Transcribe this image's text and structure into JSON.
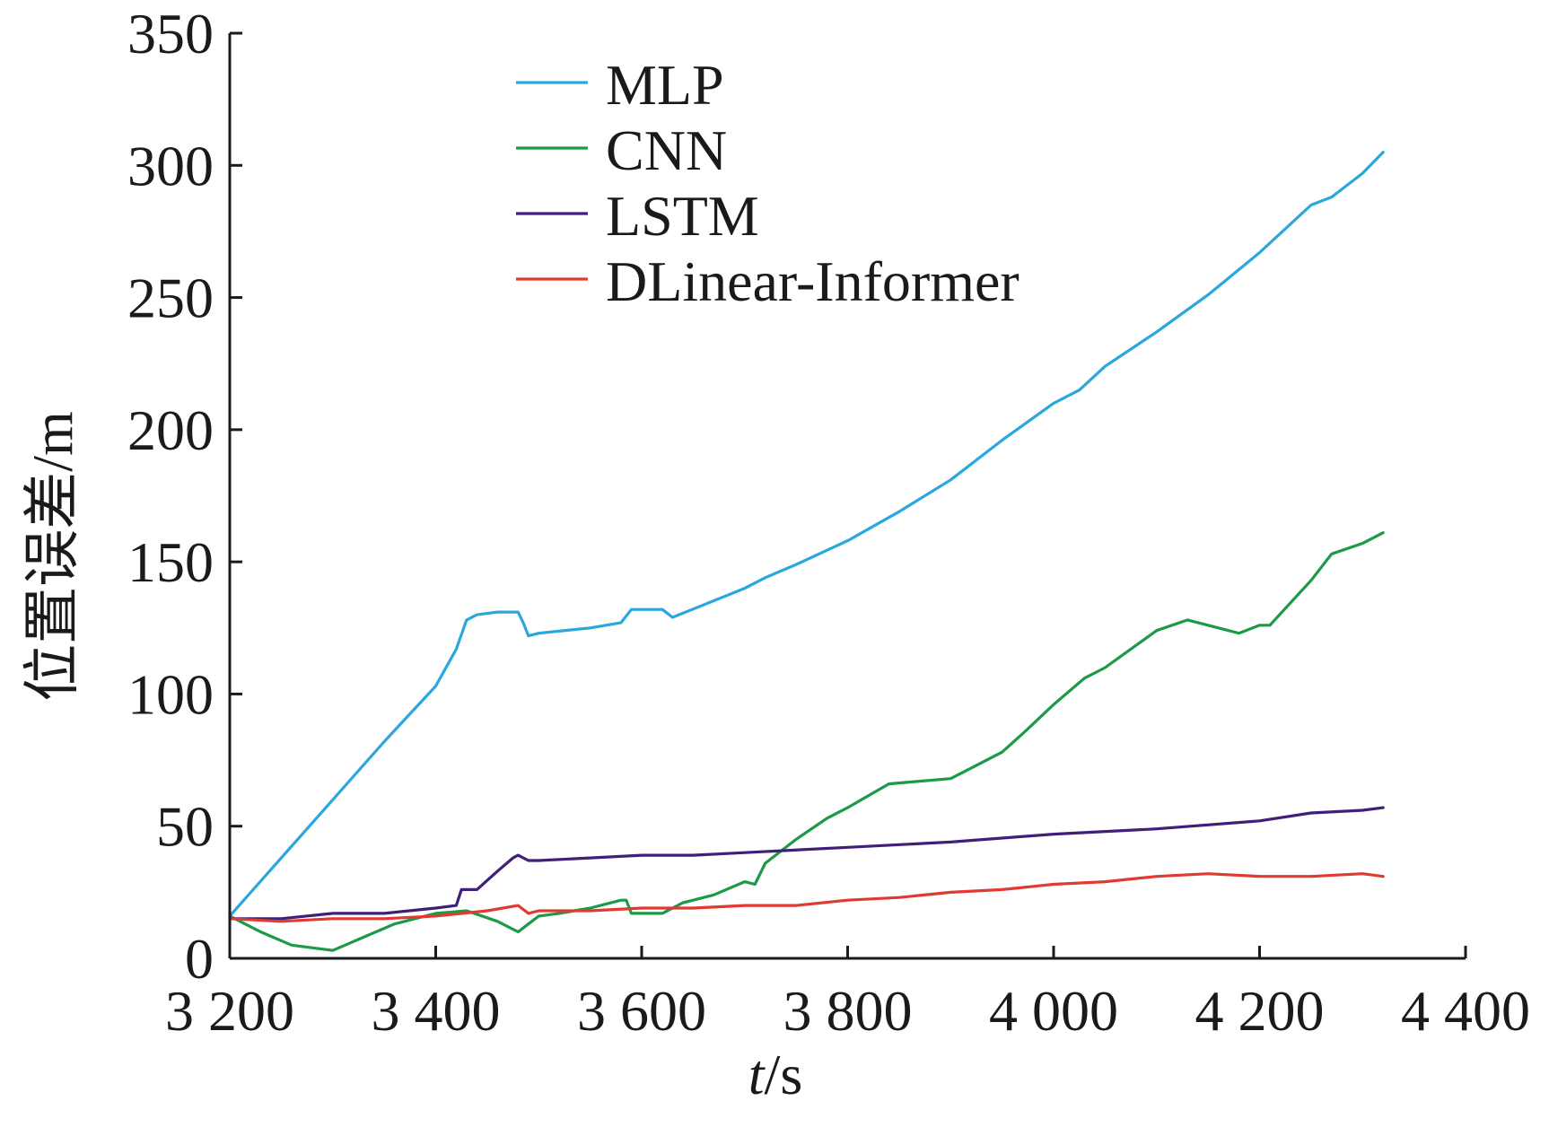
{
  "chart_data": {
    "type": "line",
    "xlabel_italic": "t",
    "xlabel_unit": "/s",
    "ylabel": "位置误差/m",
    "xlim": [
      3200,
      4400
    ],
    "ylim": [
      0,
      350
    ],
    "xticks": [
      3200,
      3400,
      3600,
      3800,
      4000,
      4200,
      4400
    ],
    "xtick_labels": [
      "3 200",
      "3 400",
      "3 600",
      "3 800",
      "4 000",
      "4 200",
      "4 400"
    ],
    "yticks": [
      0,
      50,
      100,
      150,
      200,
      250,
      300,
      350
    ],
    "ytick_labels": [
      "0",
      "50",
      "100",
      "150",
      "200",
      "250",
      "300",
      "350"
    ],
    "grid": false,
    "legend_position": "top-center",
    "series": [
      {
        "name": "MLP",
        "color": "#2aa7dc",
        "x": [
          3200,
          3250,
          3300,
          3350,
          3400,
          3420,
          3430,
          3440,
          3460,
          3480,
          3485,
          3490,
          3500,
          3550,
          3580,
          3590,
          3620,
          3630,
          3700,
          3720,
          3750,
          3800,
          3850,
          3900,
          3950,
          4000,
          4025,
          4050,
          4100,
          4150,
          4200,
          4250,
          4270,
          4300,
          4320
        ],
        "y": [
          16,
          38,
          60,
          82,
          103,
          117,
          128,
          130,
          131,
          131,
          127,
          122,
          123,
          125,
          127,
          132,
          132,
          129,
          140,
          144,
          149,
          158,
          169,
          181,
          196,
          210,
          215,
          224,
          237,
          251,
          267,
          285,
          288,
          297,
          305
        ]
      },
      {
        "name": "CNN",
        "color": "#1c9a48",
        "x": [
          3200,
          3230,
          3260,
          3300,
          3330,
          3360,
          3400,
          3430,
          3460,
          3480,
          3490,
          3500,
          3520,
          3550,
          3580,
          3585,
          3590,
          3620,
          3640,
          3670,
          3700,
          3710,
          3720,
          3750,
          3780,
          3800,
          3840,
          3870,
          3900,
          3920,
          3950,
          3970,
          4000,
          4030,
          4050,
          4100,
          4130,
          4150,
          4180,
          4200,
          4210,
          4250,
          4270,
          4300,
          4320
        ],
        "y": [
          16,
          10,
          5,
          3,
          8,
          13,
          17,
          18,
          14,
          10,
          13,
          16,
          17,
          19,
          22,
          22,
          17,
          17,
          21,
          24,
          29,
          28,
          36,
          45,
          53,
          57,
          66,
          67,
          68,
          72,
          78,
          85,
          96,
          106,
          110,
          124,
          128,
          126,
          123,
          126,
          126,
          143,
          153,
          157,
          161
        ]
      },
      {
        "name": "LSTM",
        "color": "#3f1f7a",
        "x": [
          3200,
          3250,
          3300,
          3350,
          3400,
          3420,
          3425,
          3440,
          3460,
          3475,
          3480,
          3490,
          3500,
          3550,
          3600,
          3650,
          3700,
          3800,
          3900,
          4000,
          4100,
          4200,
          4250,
          4300,
          4320
        ],
        "y": [
          15,
          15,
          17,
          17,
          19,
          20,
          26,
          26,
          33,
          38,
          39,
          37,
          37,
          38,
          39,
          39,
          40,
          42,
          44,
          47,
          49,
          52,
          55,
          56,
          57
        ]
      },
      {
        "name": "DLinear-Informer",
        "color": "#e03a32",
        "x": [
          3200,
          3250,
          3300,
          3350,
          3400,
          3450,
          3480,
          3490,
          3500,
          3550,
          3600,
          3650,
          3700,
          3750,
          3800,
          3850,
          3900,
          3950,
          4000,
          4050,
          4100,
          4150,
          4200,
          4250,
          4300,
          4320
        ],
        "y": [
          15,
          14,
          15,
          15,
          16,
          18,
          20,
          17,
          18,
          18,
          19,
          19,
          20,
          20,
          22,
          23,
          25,
          26,
          28,
          29,
          31,
          32,
          31,
          31,
          32,
          31
        ]
      }
    ]
  }
}
